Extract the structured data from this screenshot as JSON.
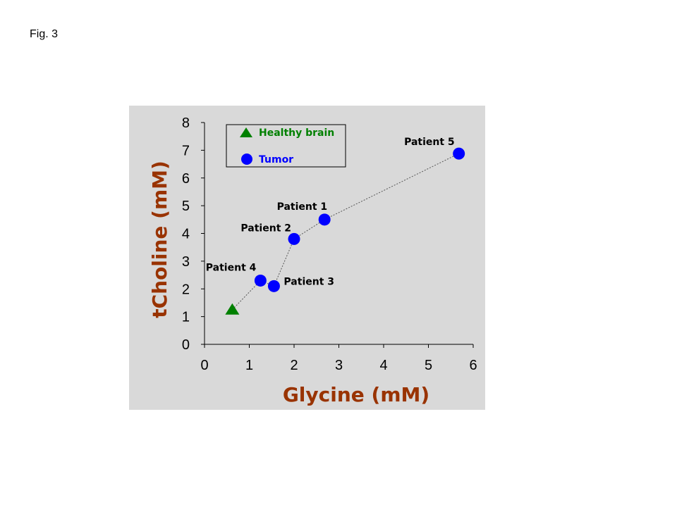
{
  "figure_label": "Fig. 3",
  "colors": {
    "panel_bg": "#d9d9d9",
    "axis_title": "#993300",
    "tumor": "#0000ff",
    "healthy": "#008000",
    "legend_healthy_text": "#008000",
    "legend_tumor_text": "#0000ff",
    "connector": "#555555"
  },
  "chart_data": {
    "type": "scatter",
    "xlabel": "Glycine (mM)",
    "ylabel": "tCholine (mM)",
    "xlim": [
      0,
      6
    ],
    "ylim": [
      0,
      8
    ],
    "xticks": [
      "0",
      "1",
      "2",
      "3",
      "4",
      "5",
      "6"
    ],
    "yticks": [
      "0",
      "1",
      "2",
      "3",
      "4",
      "5",
      "6",
      "7",
      "8"
    ],
    "grid": false,
    "legend_position": "top-left",
    "series": [
      {
        "name": "Healthy brain",
        "marker": "triangle",
        "color": "#008000",
        "points": [
          {
            "x": 0.62,
            "y": 1.25,
            "label": ""
          }
        ]
      },
      {
        "name": "Tumor",
        "marker": "circle",
        "color": "#0000ff",
        "points": [
          {
            "x": 1.25,
            "y": 2.3,
            "label": "Patient 4"
          },
          {
            "x": 1.55,
            "y": 2.1,
            "label": "Patient 3"
          },
          {
            "x": 2.0,
            "y": 3.8,
            "label": "Patient 2"
          },
          {
            "x": 2.68,
            "y": 4.5,
            "label": "Patient 1"
          },
          {
            "x": 5.68,
            "y": 6.88,
            "label": "Patient 5"
          }
        ]
      }
    ],
    "connector_order": [
      {
        "x": 0.62,
        "y": 1.25
      },
      {
        "x": 1.25,
        "y": 2.3
      },
      {
        "x": 1.55,
        "y": 2.1
      },
      {
        "x": 2.0,
        "y": 3.8
      },
      {
        "x": 2.68,
        "y": 4.5
      },
      {
        "x": 5.68,
        "y": 6.88
      }
    ]
  }
}
